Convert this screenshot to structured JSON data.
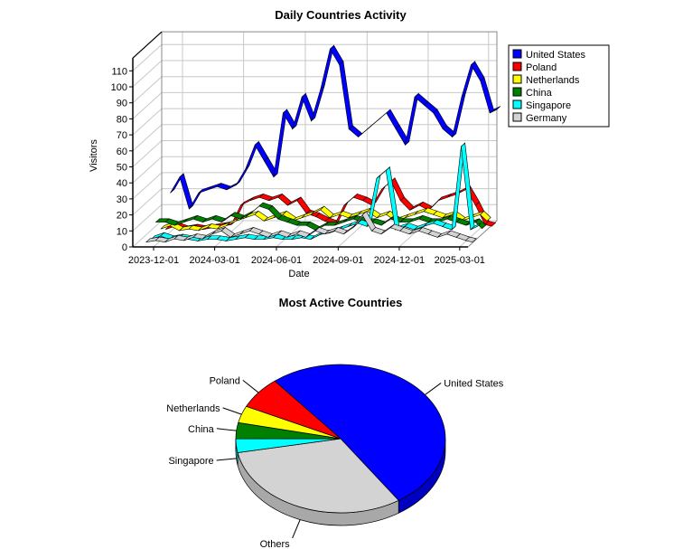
{
  "chart_data": [
    {
      "type": "area",
      "style": "3d-ribbon",
      "title": "Daily Countries Activity",
      "xlabel": "Date",
      "ylabel": "Visitors",
      "ylim": [
        0,
        110
      ],
      "yticks": [
        0,
        10,
        20,
        30,
        40,
        50,
        60,
        70,
        80,
        90,
        100,
        110
      ],
      "xticks": [
        "2023-12-01",
        "2024-03-01",
        "2024-06-01",
        "2024-09-01",
        "2024-12-01",
        "2025-03-01"
      ],
      "grid": true,
      "legend_position": "right",
      "x": [
        "2023-11-20",
        "2023-12-04",
        "2023-12-18",
        "2024-01-01",
        "2024-01-15",
        "2024-01-29",
        "2024-02-12",
        "2024-02-26",
        "2024-03-11",
        "2024-03-25",
        "2024-04-08",
        "2024-04-22",
        "2024-05-06",
        "2024-05-20",
        "2024-06-03",
        "2024-06-17",
        "2024-07-01",
        "2024-07-15",
        "2024-07-29",
        "2024-08-12",
        "2024-08-26",
        "2024-09-09",
        "2024-09-23",
        "2024-10-07",
        "2024-10-21",
        "2024-11-04",
        "2024-11-18",
        "2024-12-02",
        "2024-12-16",
        "2024-12-30",
        "2025-01-13",
        "2025-01-27",
        "2025-02-10",
        "2025-02-24",
        "2025-03-10",
        "2025-03-20"
      ],
      "series": [
        {
          "name": "United States",
          "color": "#0000ff",
          "values": [
            20,
            30,
            10,
            20,
            22,
            24,
            22,
            25,
            35,
            50,
            40,
            30,
            70,
            60,
            80,
            65,
            85,
            110,
            100,
            60,
            55,
            60,
            65,
            70,
            60,
            50,
            80,
            75,
            70,
            60,
            55,
            80,
            100,
            90,
            70,
            72
          ]
        },
        {
          "name": "Poland",
          "color": "#ff0000",
          "values": [
            0,
            2,
            0,
            1,
            0,
            1,
            2,
            3,
            15,
            18,
            20,
            18,
            20,
            15,
            18,
            10,
            8,
            5,
            3,
            15,
            20,
            18,
            15,
            25,
            30,
            18,
            12,
            15,
            12,
            18,
            20,
            22,
            25,
            15,
            3,
            2
          ]
        },
        {
          "name": "Netherlands",
          "color": "#ffff00",
          "values": [
            3,
            5,
            2,
            3,
            2,
            4,
            3,
            5,
            8,
            10,
            12,
            8,
            10,
            12,
            8,
            10,
            12,
            15,
            10,
            12,
            10,
            12,
            14,
            10,
            12,
            8,
            10,
            12,
            14,
            12,
            10,
            12,
            8,
            10,
            12,
            8
          ]
        },
        {
          "name": "China",
          "color": "#008000",
          "values": [
            10,
            10,
            8,
            10,
            12,
            10,
            12,
            10,
            14,
            12,
            15,
            20,
            18,
            12,
            10,
            8,
            8,
            5,
            8,
            8,
            10,
            12,
            10,
            10,
            8,
            12,
            10,
            10,
            12,
            10,
            10,
            12,
            10,
            8,
            10,
            6
          ]
        },
        {
          "name": "Singapore",
          "color": "#00ffff",
          "values": [
            2,
            4,
            2,
            3,
            2,
            1,
            2,
            2,
            1,
            2,
            3,
            2,
            2,
            3,
            2,
            2,
            3,
            2,
            5,
            6,
            8,
            10,
            12,
            10,
            40,
            45,
            8,
            10,
            8,
            10,
            12,
            10,
            8,
            60,
            8,
            10
          ]
        },
        {
          "name": "Germany",
          "color": "#d3d3d3",
          "values": [
            3,
            4,
            3,
            5,
            4,
            6,
            5,
            8,
            10,
            6,
            8,
            10,
            8,
            6,
            8,
            6,
            8,
            6,
            10,
            8,
            10,
            8,
            12,
            20,
            10,
            8,
            12,
            10,
            8,
            10,
            8,
            6,
            8,
            6,
            4,
            3
          ]
        }
      ]
    },
    {
      "type": "pie",
      "style": "3d",
      "title": "Most Active Countries",
      "slices": [
        {
          "label": "United States",
          "value": 51.5,
          "color": "#0000ff",
          "side": "#0000c0"
        },
        {
          "label": "Others",
          "value": 31.3,
          "color": "#d3d3d3",
          "side": "#a8a8a8"
        },
        {
          "label": "Singapore",
          "value": 3.0,
          "color": "#00ffff",
          "side": "#00c0c0"
        },
        {
          "label": "China",
          "value": 3.5,
          "color": "#008000",
          "side": "#006000"
        },
        {
          "label": "Netherlands",
          "value": 3.7,
          "color": "#ffff00",
          "side": "#c0c000"
        },
        {
          "label": "Poland",
          "value": 7.0,
          "color": "#ff0000",
          "side": "#c00000"
        }
      ]
    }
  ]
}
